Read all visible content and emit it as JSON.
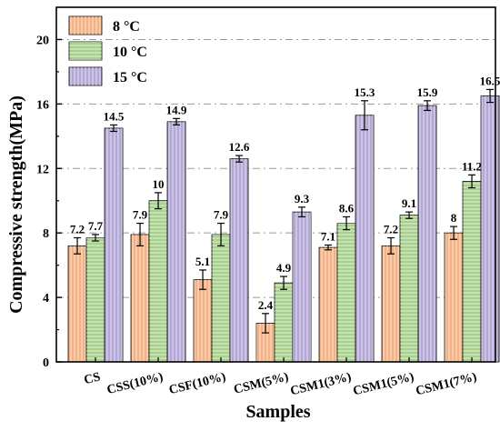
{
  "chart_data": {
    "type": "bar",
    "title": "",
    "xlabel": "Samples",
    "ylabel": "Compressive strength(MPa)",
    "ylim": [
      0,
      22
    ],
    "yticks": [
      0,
      4,
      8,
      12,
      16,
      20
    ],
    "grid": "horizontal dashed",
    "legend_position": "top-left",
    "categories": [
      "CS",
      "CSS(10%)",
      "CSF(10%)",
      "CSM(5%)",
      "CSM1(3%)",
      "CSM1(5%)",
      "CSM1(7%)"
    ],
    "series": [
      {
        "name": "8 °C",
        "color": "#f4b183",
        "hatch": "vertical",
        "values": [
          7.2,
          7.9,
          5.1,
          2.4,
          7.1,
          7.2,
          8.0
        ],
        "labels": [
          "7.2",
          "7.9",
          "5.1",
          "2.4",
          "7.1",
          "7.2",
          "8"
        ],
        "errors": [
          0.5,
          0.7,
          0.6,
          0.6,
          0.15,
          0.5,
          0.4
        ]
      },
      {
        "name": "10 °C",
        "color": "#a9d18e",
        "hatch": "horizontal",
        "values": [
          7.7,
          10.0,
          7.9,
          4.9,
          8.6,
          9.1,
          11.2
        ],
        "labels": [
          "7.7",
          "10",
          "7.9",
          "4.9",
          "8.6",
          "9.1",
          "11.2"
        ],
        "errors": [
          0.2,
          0.5,
          0.7,
          0.4,
          0.4,
          0.2,
          0.4
        ]
      },
      {
        "name": "15 °C",
        "color": "#b4a7d6",
        "hatch": "vertical",
        "values": [
          14.5,
          14.9,
          12.6,
          9.3,
          15.3,
          15.9,
          16.5
        ],
        "labels": [
          "14.5",
          "14.9",
          "12.6",
          "9.3",
          "15.3",
          "15.9",
          "16.5"
        ],
        "errors": [
          0.2,
          0.2,
          0.2,
          0.3,
          0.9,
          0.3,
          0.4
        ]
      }
    ]
  }
}
